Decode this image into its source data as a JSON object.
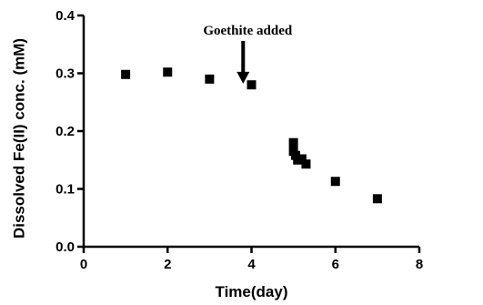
{
  "chart_data": {
    "type": "scatter",
    "xlabel": "Time(day)",
    "ylabel": "Dissolved Fe(II) conc. (mM)",
    "xlim": [
      0,
      8
    ],
    "ylim": [
      0.0,
      0.4
    ],
    "x_ticks": [
      "0",
      "2",
      "4",
      "6",
      "8"
    ],
    "y_ticks": [
      "0.0",
      "0.1",
      "0.2",
      "0.3",
      "0.4"
    ],
    "grid": false,
    "marker": "square",
    "color": "#000000",
    "series": [
      {
        "points": [
          {
            "x": 1.0,
            "y": 0.298
          },
          {
            "x": 2.0,
            "y": 0.302
          },
          {
            "x": 3.0,
            "y": 0.29
          },
          {
            "x": 4.0,
            "y": 0.28
          },
          {
            "x": 5.0,
            "y": 0.18
          },
          {
            "x": 5.0,
            "y": 0.165
          },
          {
            "x": 5.05,
            "y": 0.158
          },
          {
            "x": 5.1,
            "y": 0.15
          },
          {
            "x": 5.2,
            "y": 0.152
          },
          {
            "x": 5.3,
            "y": 0.143
          },
          {
            "x": 6.0,
            "y": 0.113
          },
          {
            "x": 7.0,
            "y": 0.083
          }
        ]
      }
    ],
    "annotations": [
      {
        "text": "Goethite added",
        "x": 3.8,
        "y": 0.33,
        "arrow_to": {
          "x": 3.8,
          "y": 0.29
        }
      }
    ]
  }
}
